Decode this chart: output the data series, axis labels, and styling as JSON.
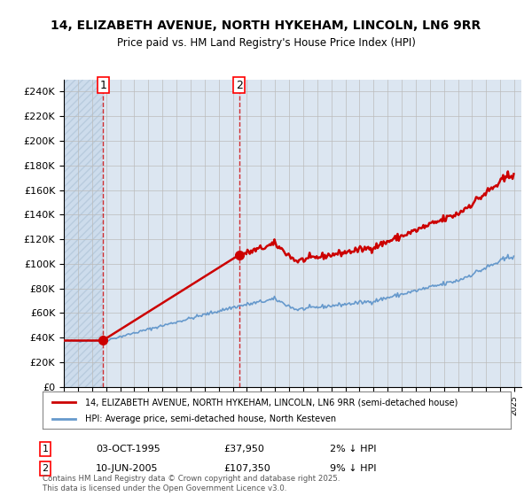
{
  "title_line1": "14, ELIZABETH AVENUE, NORTH HYKEHAM, LINCOLN, LN6 9RR",
  "title_line2": "Price paid vs. HM Land Registry's House Price Index (HPI)",
  "ylabel": "",
  "xlabel": "",
  "background_color": "#dce6f1",
  "hatch_color": "#b8cce4",
  "grid_color": "#aaaaaa",
  "red_line_color": "#cc0000",
  "blue_line_color": "#6699cc",
  "sale1_date": "03-OCT-1995",
  "sale1_price": 37950,
  "sale1_label": "1",
  "sale2_date": "10-JUN-2005",
  "sale2_price": 107350,
  "sale2_label": "2",
  "ylim_min": 0,
  "ylim_max": 250000,
  "ytick_step": 20000,
  "legend_label_red": "14, ELIZABETH AVENUE, NORTH HYKEHAM, LINCOLN, LN6 9RR (semi-detached house)",
  "legend_label_blue": "HPI: Average price, semi-detached house, North Kesteven",
  "footer_text": "Contains HM Land Registry data © Crown copyright and database right 2025.\nThis data is licensed under the Open Government Licence v3.0.",
  "annotation1_text": "1",
  "annotation1_date_str": "03-OCT-1995",
  "annotation1_price_str": "£37,950",
  "annotation1_pct": "2% ↓ HPI",
  "annotation2_text": "2",
  "annotation2_date_str": "10-JUN-2005",
  "annotation2_price_str": "£107,350",
  "annotation2_pct": "9% ↓ HPI"
}
